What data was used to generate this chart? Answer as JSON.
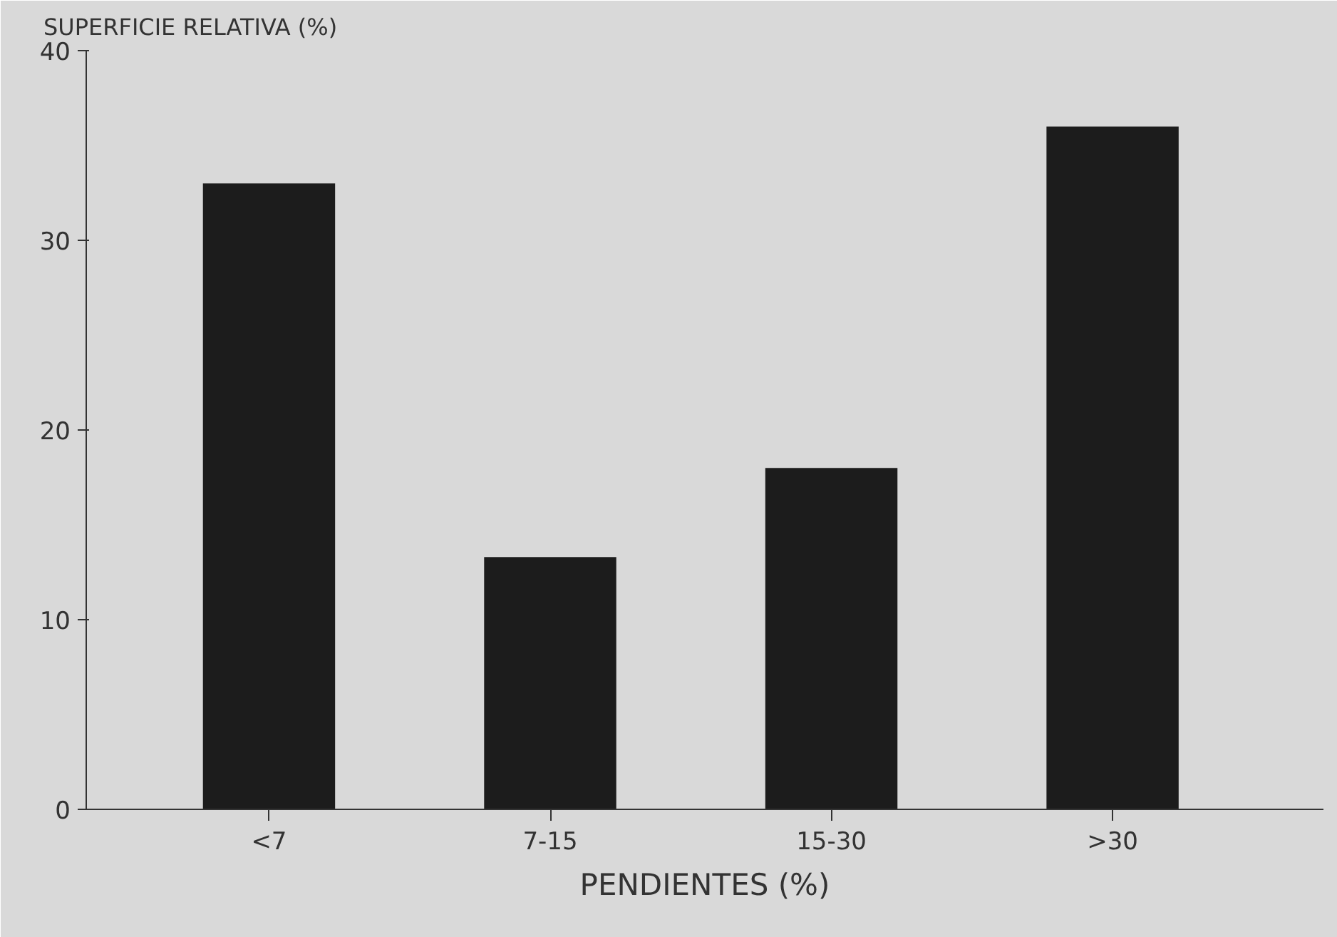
{
  "chart_data": {
    "type": "bar",
    "xlabel": "PENDIENTES (%)",
    "ylabel": "SUPERFICIE RELATIVA (%)",
    "categories": [
      "<7",
      "7-15",
      "15-30",
      ">30"
    ],
    "values": [
      33,
      13.3,
      18,
      36
    ],
    "color": "#1c1c1c",
    "ylim": [
      0,
      40
    ],
    "yticks": [
      0,
      10,
      20,
      30,
      40
    ],
    "grid": false
  }
}
